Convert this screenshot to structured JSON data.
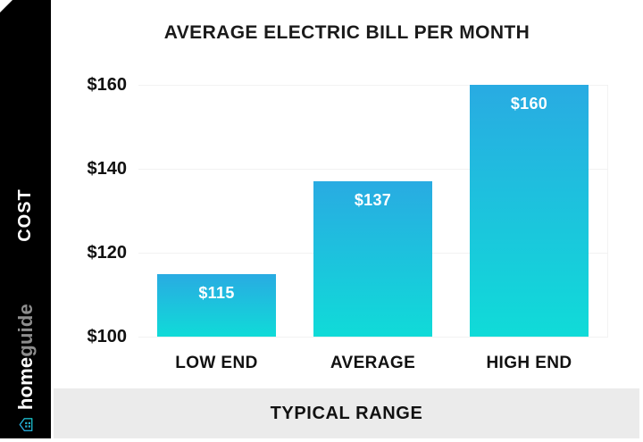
{
  "sidebar": {
    "logo": {
      "bold": "home",
      "light": "guide",
      "icon": "house-icon"
    }
  },
  "chart_data": {
    "type": "bar",
    "title": "AVERAGE ELECTRIC BILL PER MONTH",
    "ylabel": "COST",
    "xlabel": "TYPICAL RANGE",
    "categories": [
      "LOW END",
      "AVERAGE",
      "HIGH END"
    ],
    "values": [
      115,
      137,
      160
    ],
    "value_labels": [
      "$115",
      "$137",
      "$160"
    ],
    "y_ticks": [
      {
        "value": 160,
        "label": "$160"
      },
      {
        "value": 140,
        "label": "$140"
      },
      {
        "value": 120,
        "label": "$120"
      },
      {
        "value": 100,
        "label": "$100"
      }
    ],
    "ylim": [
      100,
      160
    ],
    "grid": true,
    "legend": "none",
    "bar_gradient_top": "#29ABE2",
    "bar_gradient_bottom": "#10DBD8"
  },
  "colors": {
    "sidebar_bg": "#000000",
    "footer_bg": "#EBEBEB",
    "grid": "#F2F2F2",
    "text": "#1A1A1A",
    "bar_text": "#FFFFFF",
    "logo_light": "#8E8E8E",
    "logo_icon_a": "#2D9CDB",
    "logo_icon_b": "#17C3C6"
  }
}
